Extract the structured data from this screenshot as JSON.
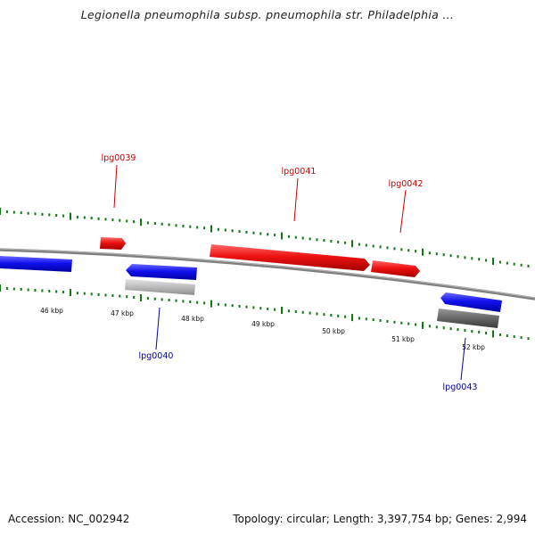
{
  "title": "Legionella pneumophila subsp. pneumophila str. Philadelphia ...",
  "footer": {
    "accession": "Accession: NC_002942",
    "summary": "Topology: circular; Length: 3,397,754 bp; Genes: 2,994"
  },
  "colors": {
    "forward_gene": "#ee1111",
    "reverse_gene": "#1111ee",
    "tick": "#117711",
    "backbone": "#808080",
    "forward_label": "#cc0000",
    "reverse_label": "#0000aa",
    "kbp_label": "#111111"
  },
  "scale": {
    "labels": [
      "46 kbp",
      "47 kbp",
      "48 kbp",
      "49 kbp",
      "50 kbp",
      "51 kbp",
      "52 kbp"
    ]
  },
  "genes": [
    {
      "label": "",
      "strand": "reverse",
      "color": "#1111ee"
    },
    {
      "label": "",
      "strand": "forward",
      "color": "#ee1111"
    },
    {
      "label": "lpg0039",
      "strand": "forward",
      "color": "#ee1111"
    },
    {
      "label": "lpg0040",
      "strand": "reverse",
      "color": "#1111ee"
    },
    {
      "label": "lpg0041",
      "strand": "forward",
      "color": "#ee1111"
    },
    {
      "label": "lpg0042",
      "strand": "forward",
      "color": "#ee1111"
    },
    {
      "label": "lpg0043",
      "strand": "reverse",
      "color": "#1111ee"
    }
  ],
  "features": [
    {
      "name": "light-gray-feature",
      "color": "#bbbbbb"
    },
    {
      "name": "dark-gray-feature",
      "color": "#666666"
    }
  ]
}
